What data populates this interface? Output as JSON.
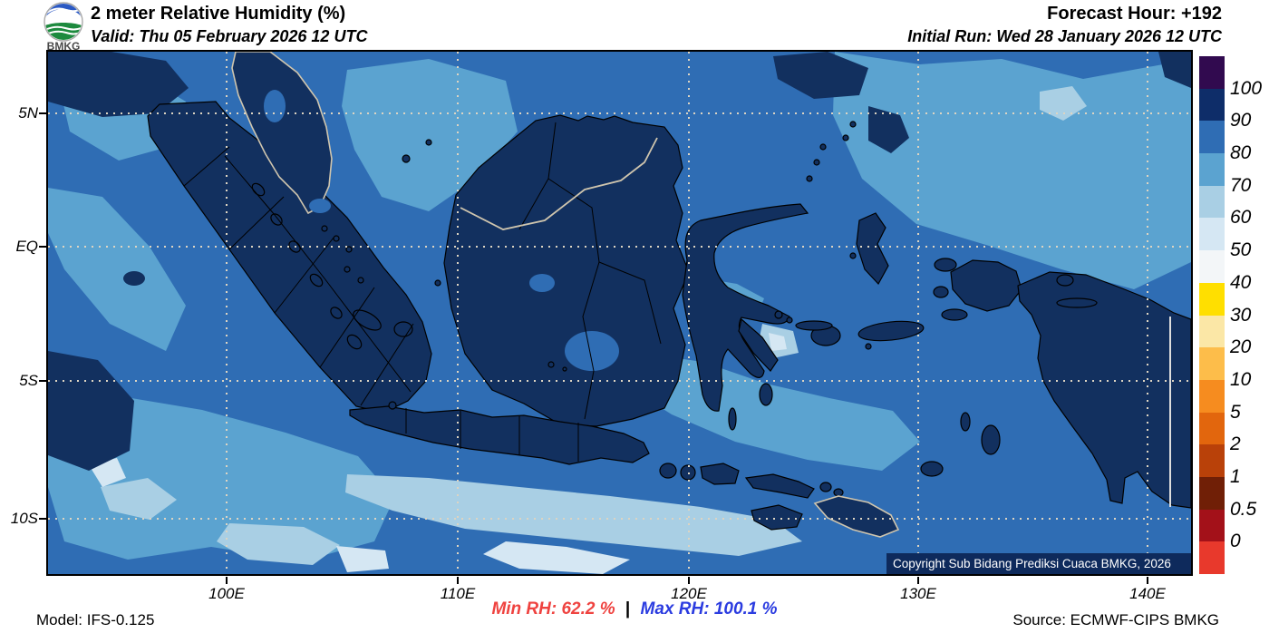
{
  "header": {
    "logo_label": "BMKG",
    "title": "2 meter Relative Humidity (%)",
    "valid": "Valid: Thu 05 February 2026 12 UTC",
    "forecast_hour": "Forecast Hour: +192",
    "initial_run": "Initial Run: Wed 28 January 2026 12 UTC"
  },
  "map": {
    "copyright": "Copyright Sub Bidang Prediksi Cuaca BMKG, 2026",
    "lat_ticks": [
      "5N",
      "EQ",
      "5S",
      "10S"
    ],
    "lon_ticks": [
      "100E",
      "110E",
      "120E",
      "130E",
      "140E"
    ]
  },
  "colorbar": {
    "labels": [
      "100",
      "90",
      "80",
      "70",
      "60",
      "50",
      "40",
      "30",
      "20",
      "10",
      "5",
      "2",
      "1",
      "0.5",
      "0"
    ],
    "colors": [
      "#310a4f",
      "#0e2d69",
      "#2f6db4",
      "#5ba3d0",
      "#a9cfe4",
      "#d5e7f3",
      "#f3f6f8",
      "#ffdf00",
      "#fbe7a6",
      "#fdbd4a",
      "#f68c1f",
      "#e2660d",
      "#b94109",
      "#701f06",
      "#a31119",
      "#e8392c"
    ]
  },
  "footer": {
    "model": "Model: IFS-0.125",
    "min_rh": "Min RH:  62.2 %",
    "separator": "|",
    "max_rh": "Max RH: 100.1 %",
    "source": "Source: ECMWF-CIPS BMKG"
  },
  "palette": {
    "sea_80": "#2f6db4",
    "sea_70": "#5ba3d0",
    "sea_60": "#a9cfe4",
    "sea_50": "#d5e7f3",
    "land_90": "#12305f",
    "coast_id": "#000000",
    "coast_foreign": "#cfc5ae",
    "grid_dots": "#ddd4c2",
    "copyright_bg": "#0e2a5c",
    "copyright_text": "#ffffff",
    "min_rh": "#ef4340",
    "max_rh": "#2b3ce0"
  }
}
